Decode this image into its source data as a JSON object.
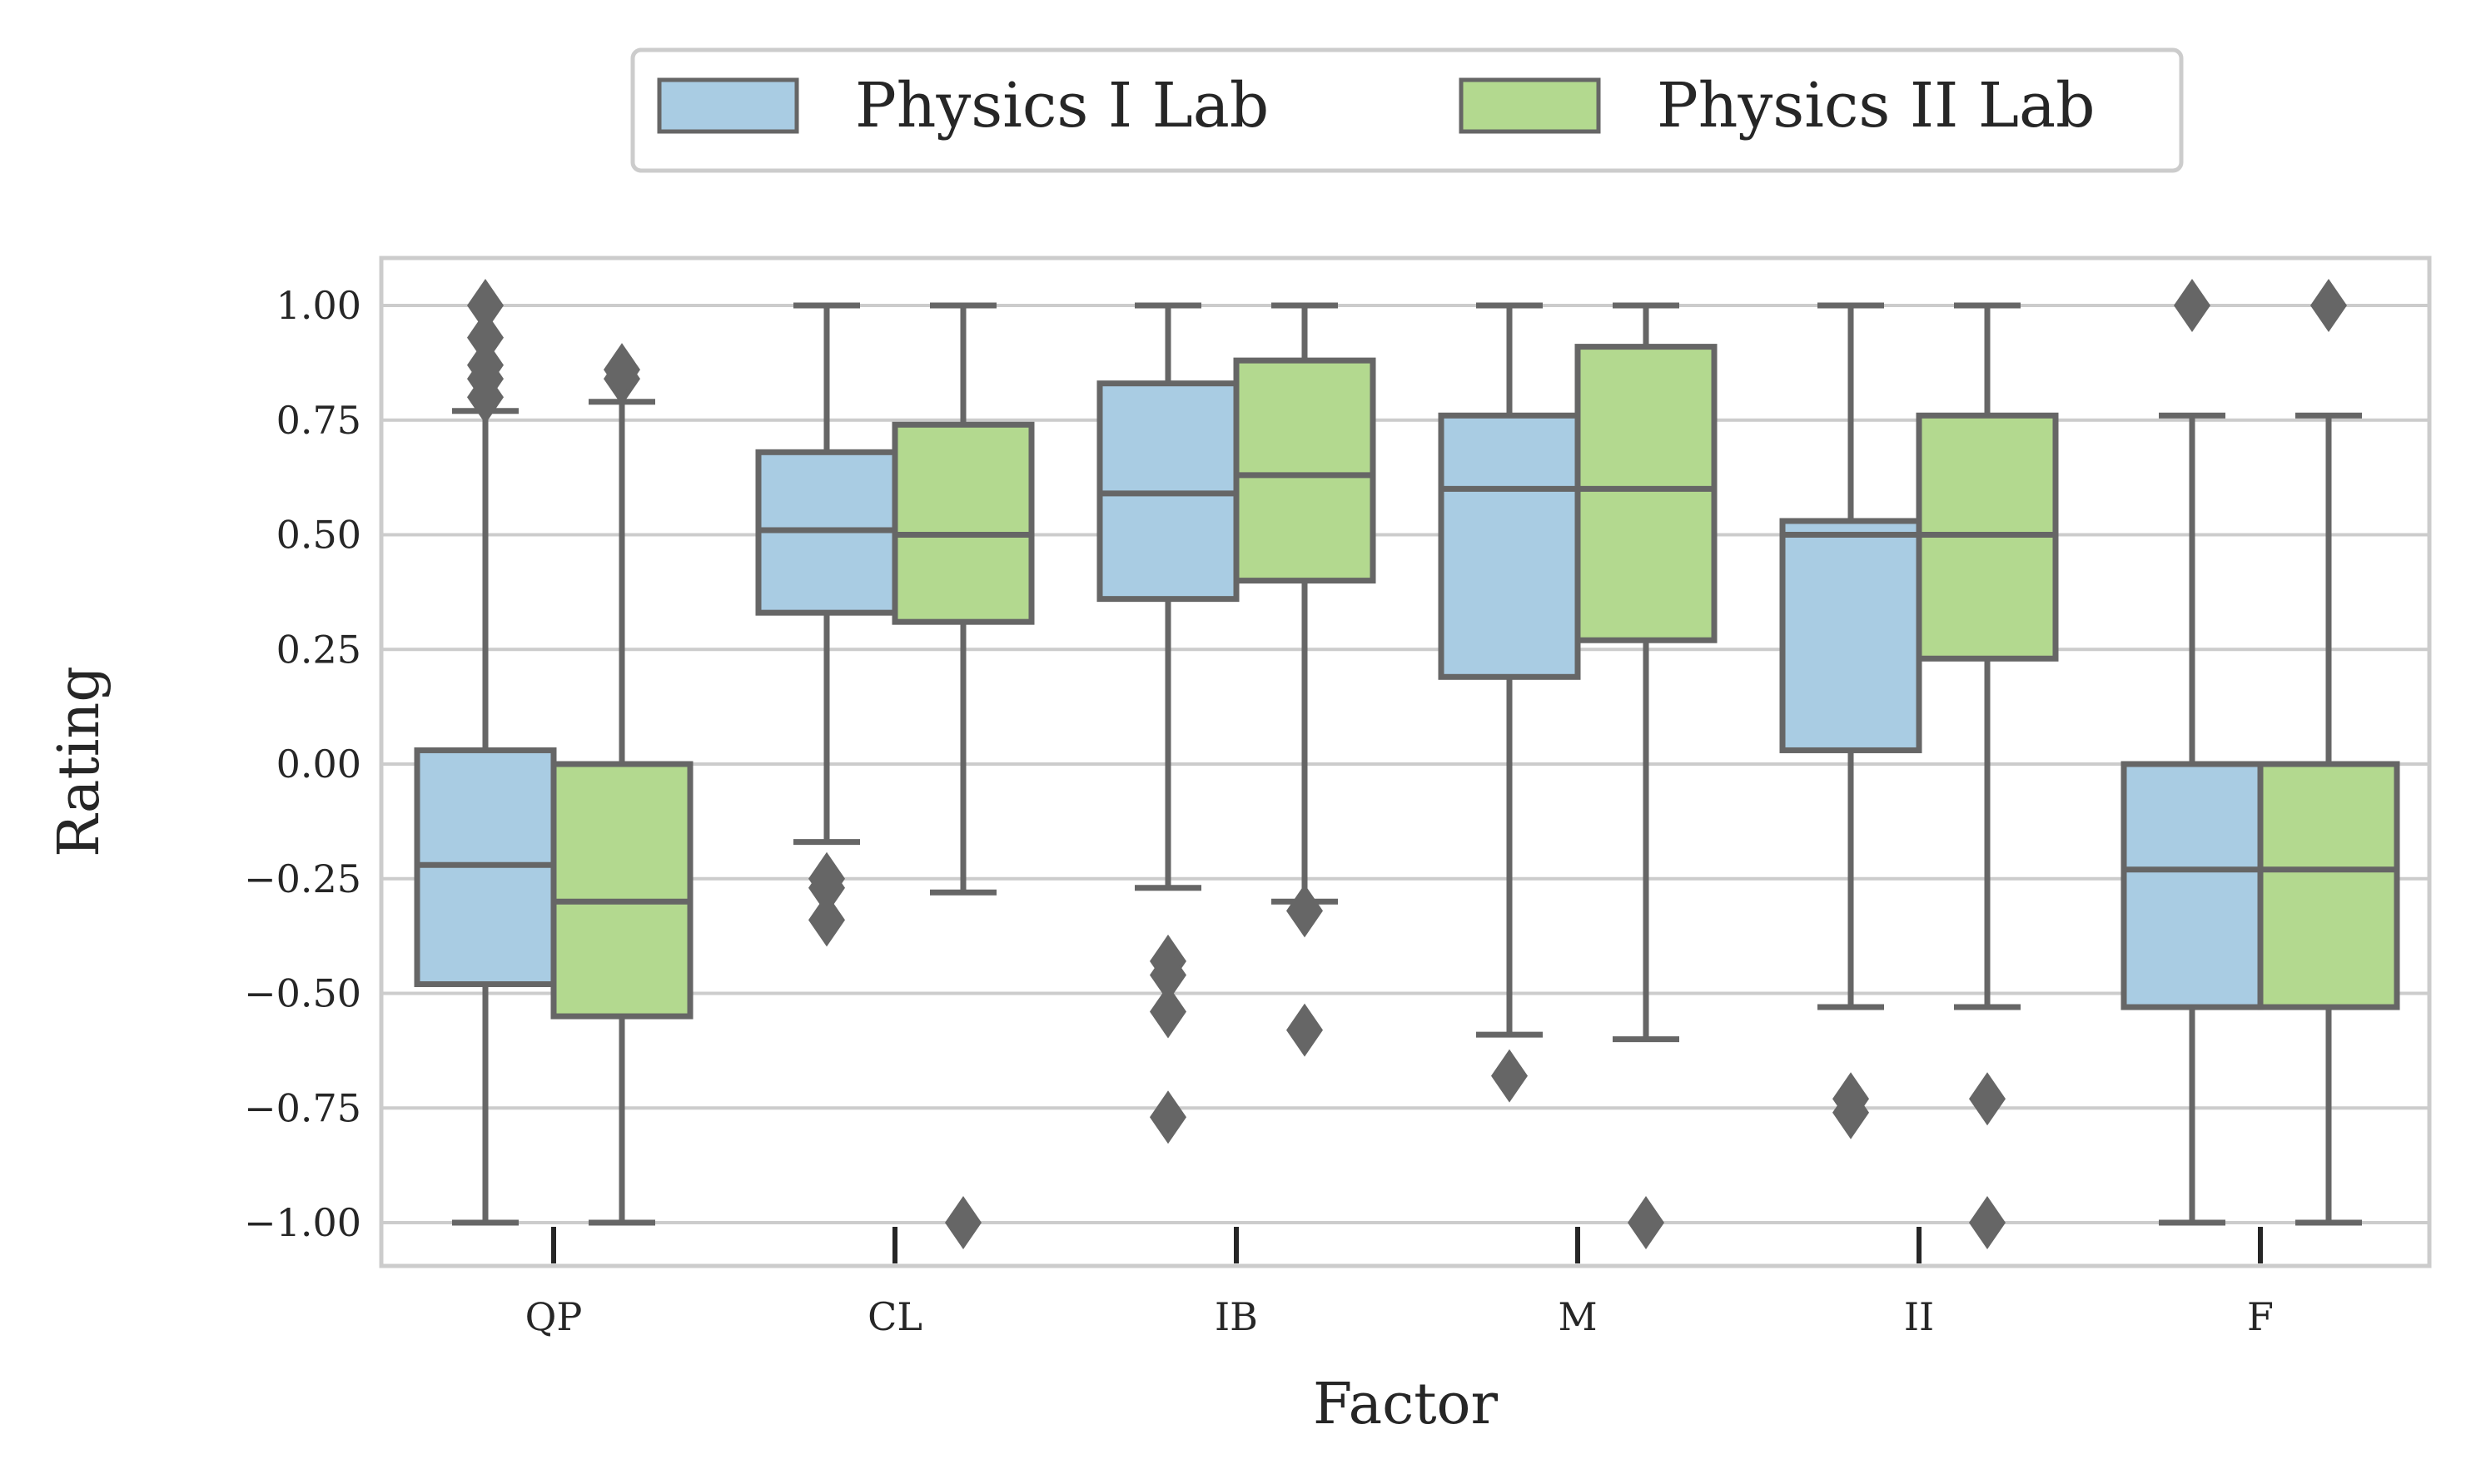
{
  "chart_data": {
    "type": "boxplot",
    "title": "",
    "xlabel": "Factor",
    "ylabel": "Rating",
    "ylim": [
      -1.1,
      1.1
    ],
    "yticks": [
      1.0,
      0.75,
      0.5,
      0.25,
      0.0,
      -0.25,
      -0.5,
      -0.75,
      -1.0
    ],
    "ytick_labels": [
      "1.00",
      "0.75",
      "0.50",
      "0.25",
      "0.00",
      "−0.25",
      "−0.50",
      "−0.75",
      "−1.00"
    ],
    "grid": "horizontal",
    "legend_position": "top-center",
    "categories": [
      "QP",
      "CL",
      "IB",
      "M",
      "II",
      "F"
    ],
    "series": [
      {
        "name": "Physics I Lab",
        "color": "#a9cce3",
        "boxes": [
          {
            "whisker_low": -1.0,
            "q1": -0.48,
            "median": -0.22,
            "q3": 0.03,
            "whisker_high": 0.77,
            "outliers": [
              0.8,
              0.84,
              0.87,
              0.93,
              1.0
            ]
          },
          {
            "whisker_low": -0.17,
            "q1": 0.33,
            "median": 0.51,
            "q3": 0.68,
            "whisker_high": 1.0,
            "outliers": [
              -0.25,
              -0.27,
              -0.34
            ]
          },
          {
            "whisker_low": -0.27,
            "q1": 0.36,
            "median": 0.59,
            "q3": 0.83,
            "whisker_high": 1.0,
            "outliers": [
              -0.43,
              -0.46,
              -0.54,
              -0.77
            ]
          },
          {
            "whisker_low": -0.59,
            "q1": 0.19,
            "median": 0.6,
            "q3": 0.76,
            "whisker_high": 1.0,
            "outliers": [
              -0.68
            ]
          },
          {
            "whisker_low": -0.53,
            "q1": 0.03,
            "median": 0.5,
            "q3": 0.53,
            "whisker_high": 1.0,
            "outliers": [
              -0.73,
              -0.76
            ]
          },
          {
            "whisker_low": -1.0,
            "q1": -0.53,
            "median": -0.23,
            "q3": 0.0,
            "whisker_high": 0.76,
            "outliers": [
              1.0
            ]
          }
        ]
      },
      {
        "name": "Physics II Lab",
        "color": "#b3d98f",
        "boxes": [
          {
            "whisker_low": -1.0,
            "q1": -0.55,
            "median": -0.3,
            "q3": 0.0,
            "whisker_high": 0.79,
            "outliers": [
              0.84,
              0.86
            ]
          },
          {
            "whisker_low": -0.28,
            "q1": 0.31,
            "median": 0.5,
            "q3": 0.74,
            "whisker_high": 1.0,
            "outliers": [
              -1.0
            ]
          },
          {
            "whisker_low": -0.3,
            "q1": 0.4,
            "median": 0.63,
            "q3": 0.88,
            "whisker_high": 1.0,
            "outliers": [
              -0.32,
              -0.58
            ]
          },
          {
            "whisker_low": -0.6,
            "q1": 0.27,
            "median": 0.6,
            "q3": 0.91,
            "whisker_high": 1.0,
            "outliers": [
              -1.0
            ]
          },
          {
            "whisker_low": -0.53,
            "q1": 0.23,
            "median": 0.5,
            "q3": 0.76,
            "whisker_high": 1.0,
            "outliers": [
              -0.73,
              -1.0
            ]
          },
          {
            "whisker_low": -1.0,
            "q1": -0.53,
            "median": -0.23,
            "q3": 0.0,
            "whisker_high": 0.76,
            "outliers": [
              1.0
            ]
          }
        ]
      }
    ]
  },
  "colors": {
    "box_edge": "#666666",
    "grid": "#cccccc",
    "tick_mark": "#262626",
    "text": "#262626"
  }
}
